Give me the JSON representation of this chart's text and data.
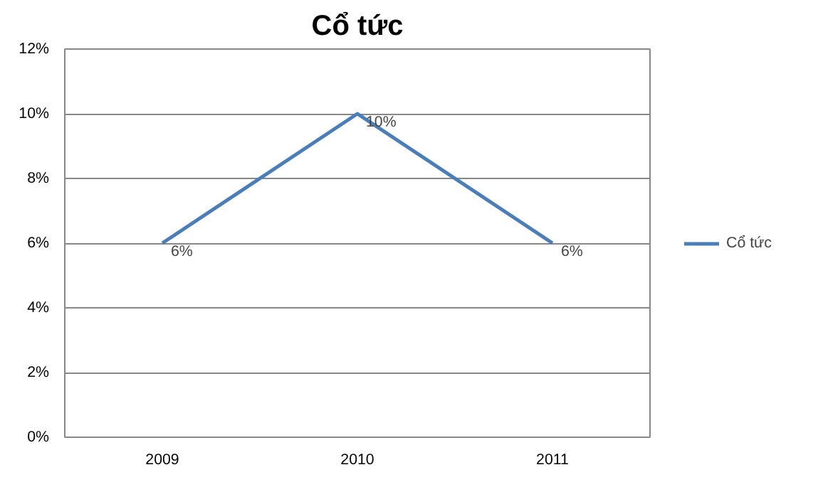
{
  "chart_data": {
    "type": "line",
    "title": "Cổ tức",
    "categories": [
      "2009",
      "2010",
      "2011"
    ],
    "series": [
      {
        "name": "Cổ tức",
        "color": "#4a7ebb",
        "values": [
          6,
          10,
          6
        ],
        "value_labels": [
          "6%",
          "10%",
          "6%"
        ]
      }
    ],
    "ylim": [
      0,
      12
    ],
    "yticks": [
      {
        "value": 0,
        "label": "0%"
      },
      {
        "value": 2,
        "label": "2%"
      },
      {
        "value": 4,
        "label": "4%"
      },
      {
        "value": 6,
        "label": "6%"
      },
      {
        "value": 8,
        "label": "8%"
      },
      {
        "value": 10,
        "label": "10%"
      },
      {
        "value": 12,
        "label": "12%"
      }
    ],
    "grid": "y",
    "legend": "right",
    "marker": "none",
    "line_style": "solid"
  }
}
